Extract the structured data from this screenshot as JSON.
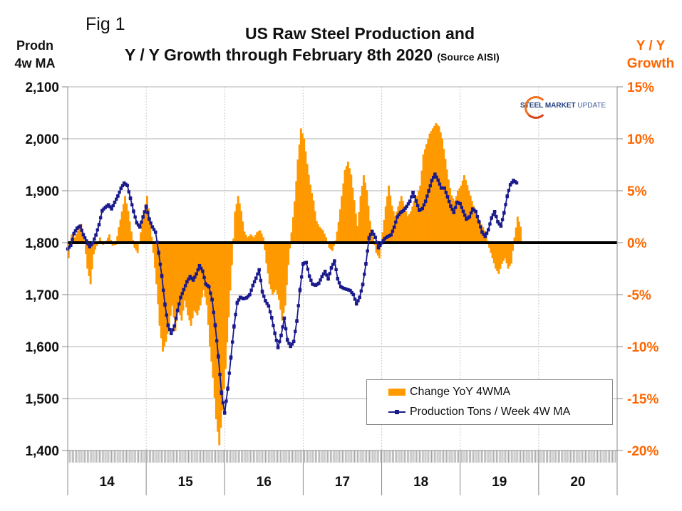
{
  "figure_label": "Fig 1",
  "title_line1": "US Raw Steel Production and",
  "title_line2": "Y / Y Growth through February 8th 2020",
  "source_note": "(Source AISI)",
  "left_axis_title_line1": "Prodn",
  "left_axis_title_line2": "4w MA",
  "right_axis_title_line1": "Y / Y",
  "right_axis_title_line2": "Growth",
  "logo": {
    "bold": "STEEL",
    "mid": "MARKET",
    "light": "UPDATE"
  },
  "colors": {
    "bars": "#ff9900",
    "line": "#1a1a8c",
    "right_axis": "#ff6600",
    "zero_line": "#000000",
    "grid": "#c0c0c0"
  },
  "chart_data": {
    "type": "bar+line",
    "title": "US Raw Steel Production and Y / Y Growth through February 8th 2020 (Source AISI)",
    "xlabel": "",
    "ylabel_left": "Prodn 4w MA",
    "ylabel_right": "Y / Y Growth",
    "ylim_left": [
      1400,
      2100
    ],
    "ylim_right": [
      -20,
      15
    ],
    "yticks_left": [
      "1,400",
      "1,500",
      "1,600",
      "1,700",
      "1,800",
      "1,900",
      "2,000",
      "2,100"
    ],
    "yticks_right": [
      "-20%",
      "-15%",
      "-10%",
      "-5%",
      "0%",
      "5%",
      "10%",
      "15%"
    ],
    "categories": [
      "14",
      "15",
      "16",
      "17",
      "18",
      "19",
      "20"
    ],
    "x_range_years": [
      2014.0,
      2021.0
    ],
    "grid": true,
    "legend_position": "bottom-right",
    "legend": [
      "Change YoY 4WMA",
      "Production Tons / Week 4W MA"
    ],
    "series": [
      {
        "name": "Change YoY 4WMA",
        "type": "bar",
        "axis": "right",
        "unit": "%",
        "points": [
          [
            2014.0,
            -1.5
          ],
          [
            2014.04,
            0.8
          ],
          [
            2014.08,
            0.5
          ],
          [
            2014.12,
            1.2
          ],
          [
            2014.16,
            1.8
          ],
          [
            2014.2,
            0.2
          ],
          [
            2014.24,
            -2.5
          ],
          [
            2014.28,
            -4.0
          ],
          [
            2014.32,
            -1.0
          ],
          [
            2014.36,
            -0.3
          ],
          [
            2014.4,
            0.5
          ],
          [
            2014.44,
            -0.2
          ],
          [
            2014.48,
            0.2
          ],
          [
            2014.52,
            0.8
          ],
          [
            2014.56,
            -0.3
          ],
          [
            2014.6,
            -0.2
          ],
          [
            2014.64,
            1.5
          ],
          [
            2014.68,
            3.0
          ],
          [
            2014.72,
            4.5
          ],
          [
            2014.76,
            3.0
          ],
          [
            2014.8,
            1.0
          ],
          [
            2014.84,
            -0.5
          ],
          [
            2014.88,
            -1.0
          ],
          [
            2014.92,
            1.0
          ],
          [
            2014.96,
            3.0
          ],
          [
            2015.0,
            4.5
          ],
          [
            2015.04,
            2.0
          ],
          [
            2015.08,
            -1.0
          ],
          [
            2015.12,
            -4.0
          ],
          [
            2015.16,
            -8.0
          ],
          [
            2015.2,
            -10.5
          ],
          [
            2015.24,
            -9.5
          ],
          [
            2015.28,
            -8.0
          ],
          [
            2015.32,
            -6.0
          ],
          [
            2015.36,
            -8.5
          ],
          [
            2015.4,
            -6.5
          ],
          [
            2015.44,
            -7.5
          ],
          [
            2015.48,
            -5.5
          ],
          [
            2015.52,
            -7.0
          ],
          [
            2015.56,
            -8.0
          ],
          [
            2015.6,
            -6.5
          ],
          [
            2015.64,
            -7.0
          ],
          [
            2015.68,
            -6.0
          ],
          [
            2015.72,
            -4.5
          ],
          [
            2015.76,
            -6.0
          ],
          [
            2015.8,
            -10.0
          ],
          [
            2015.84,
            -13.0
          ],
          [
            2015.88,
            -17.0
          ],
          [
            2015.92,
            -19.5
          ],
          [
            2015.96,
            -16.0
          ],
          [
            2016.0,
            -12.0
          ],
          [
            2016.04,
            -7.0
          ],
          [
            2016.08,
            -2.0
          ],
          [
            2016.12,
            3.0
          ],
          [
            2016.16,
            4.5
          ],
          [
            2016.2,
            3.0
          ],
          [
            2016.24,
            1.0
          ],
          [
            2016.28,
            0.5
          ],
          [
            2016.32,
            0.8
          ],
          [
            2016.36,
            0.5
          ],
          [
            2016.4,
            1.0
          ],
          [
            2016.44,
            1.2
          ],
          [
            2016.48,
            0.5
          ],
          [
            2016.52,
            -2.0
          ],
          [
            2016.56,
            -4.0
          ],
          [
            2016.6,
            -5.0
          ],
          [
            2016.64,
            -4.5
          ],
          [
            2016.68,
            -5.5
          ],
          [
            2016.72,
            -7.5
          ],
          [
            2016.76,
            -6.0
          ],
          [
            2016.8,
            -2.0
          ],
          [
            2016.84,
            1.0
          ],
          [
            2016.88,
            4.0
          ],
          [
            2016.92,
            8.0
          ],
          [
            2016.96,
            11.0
          ],
          [
            2017.0,
            10.0
          ],
          [
            2017.04,
            7.5
          ],
          [
            2017.08,
            5.5
          ],
          [
            2017.12,
            4.0
          ],
          [
            2017.16,
            2.0
          ],
          [
            2017.2,
            1.5
          ],
          [
            2017.24,
            1.2
          ],
          [
            2017.28,
            0.5
          ],
          [
            2017.32,
            -0.5
          ],
          [
            2017.36,
            -0.8
          ],
          [
            2017.4,
            0.2
          ],
          [
            2017.44,
            2.0
          ],
          [
            2017.48,
            4.5
          ],
          [
            2017.52,
            7.0
          ],
          [
            2017.56,
            7.8
          ],
          [
            2017.6,
            6.5
          ],
          [
            2017.64,
            4.0
          ],
          [
            2017.68,
            1.5
          ],
          [
            2017.72,
            4.5
          ],
          [
            2017.76,
            6.5
          ],
          [
            2017.8,
            5.0
          ],
          [
            2017.84,
            2.0
          ],
          [
            2017.88,
            0.5
          ],
          [
            2017.92,
            -1.0
          ],
          [
            2017.96,
            -1.5
          ],
          [
            2018.0,
            1.0
          ],
          [
            2018.04,
            3.5
          ],
          [
            2018.08,
            5.5
          ],
          [
            2018.12,
            3.5
          ],
          [
            2018.16,
            2.5
          ],
          [
            2018.2,
            3.5
          ],
          [
            2018.24,
            4.5
          ],
          [
            2018.28,
            3.5
          ],
          [
            2018.32,
            2.5
          ],
          [
            2018.36,
            3.0
          ],
          [
            2018.4,
            4.0
          ],
          [
            2018.44,
            4.5
          ],
          [
            2018.48,
            5.5
          ],
          [
            2018.52,
            8.5
          ],
          [
            2018.56,
            9.5
          ],
          [
            2018.6,
            10.5
          ],
          [
            2018.64,
            11.0
          ],
          [
            2018.68,
            11.5
          ],
          [
            2018.72,
            11.2
          ],
          [
            2018.76,
            10.0
          ],
          [
            2018.8,
            8.0
          ],
          [
            2018.84,
            6.0
          ],
          [
            2018.88,
            4.5
          ],
          [
            2018.92,
            4.0
          ],
          [
            2018.96,
            5.0
          ],
          [
            2019.0,
            5.5
          ],
          [
            2019.04,
            6.5
          ],
          [
            2019.08,
            5.5
          ],
          [
            2019.12,
            4.5
          ],
          [
            2019.16,
            3.5
          ],
          [
            2019.2,
            2.5
          ],
          [
            2019.24,
            2.0
          ],
          [
            2019.28,
            1.5
          ],
          [
            2019.32,
            0.8
          ],
          [
            2019.36,
            -0.5
          ],
          [
            2019.4,
            -1.5
          ],
          [
            2019.44,
            -2.5
          ],
          [
            2019.48,
            -3.0
          ],
          [
            2019.52,
            -2.0
          ],
          [
            2019.56,
            -1.5
          ],
          [
            2019.6,
            -2.5
          ],
          [
            2019.64,
            -2.0
          ],
          [
            2019.68,
            0.5
          ],
          [
            2019.72,
            2.5
          ],
          [
            2019.76,
            1.5
          ]
        ]
      },
      {
        "name": "Production Tons / Week 4W MA",
        "type": "line",
        "axis": "left",
        "unit": "tons",
        "points": [
          [
            2014.0,
            1788
          ],
          [
            2014.04,
            1795
          ],
          [
            2014.08,
            1818
          ],
          [
            2014.12,
            1828
          ],
          [
            2014.16,
            1832
          ],
          [
            2014.2,
            1815
          ],
          [
            2014.24,
            1803
          ],
          [
            2014.28,
            1792
          ],
          [
            2014.32,
            1800
          ],
          [
            2014.36,
            1815
          ],
          [
            2014.4,
            1835
          ],
          [
            2014.44,
            1862
          ],
          [
            2014.48,
            1868
          ],
          [
            2014.52,
            1873
          ],
          [
            2014.56,
            1865
          ],
          [
            2014.6,
            1878
          ],
          [
            2014.64,
            1890
          ],
          [
            2014.68,
            1905
          ],
          [
            2014.72,
            1915
          ],
          [
            2014.76,
            1910
          ],
          [
            2014.8,
            1885
          ],
          [
            2014.84,
            1860
          ],
          [
            2014.88,
            1838
          ],
          [
            2014.92,
            1830
          ],
          [
            2014.96,
            1850
          ],
          [
            2015.0,
            1870
          ],
          [
            2015.04,
            1845
          ],
          [
            2015.08,
            1830
          ],
          [
            2015.12,
            1820
          ],
          [
            2015.16,
            1780
          ],
          [
            2015.2,
            1735
          ],
          [
            2015.24,
            1680
          ],
          [
            2015.28,
            1640
          ],
          [
            2015.32,
            1625
          ],
          [
            2015.36,
            1640
          ],
          [
            2015.4,
            1670
          ],
          [
            2015.44,
            1695
          ],
          [
            2015.48,
            1710
          ],
          [
            2015.52,
            1725
          ],
          [
            2015.56,
            1735
          ],
          [
            2015.6,
            1728
          ],
          [
            2015.64,
            1740
          ],
          [
            2015.68,
            1756
          ],
          [
            2015.72,
            1745
          ],
          [
            2015.76,
            1720
          ],
          [
            2015.8,
            1715
          ],
          [
            2015.84,
            1690
          ],
          [
            2015.88,
            1640
          ],
          [
            2015.92,
            1580
          ],
          [
            2015.96,
            1510
          ],
          [
            2016.0,
            1472
          ],
          [
            2016.04,
            1520
          ],
          [
            2016.08,
            1580
          ],
          [
            2016.12,
            1640
          ],
          [
            2016.16,
            1685
          ],
          [
            2016.2,
            1695
          ],
          [
            2016.24,
            1692
          ],
          [
            2016.28,
            1694
          ],
          [
            2016.32,
            1700
          ],
          [
            2016.36,
            1718
          ],
          [
            2016.4,
            1732
          ],
          [
            2016.44,
            1748
          ],
          [
            2016.48,
            1705
          ],
          [
            2016.52,
            1688
          ],
          [
            2016.56,
            1678
          ],
          [
            2016.6,
            1655
          ],
          [
            2016.64,
            1625
          ],
          [
            2016.68,
            1598
          ],
          [
            2016.72,
            1622
          ],
          [
            2016.76,
            1655
          ],
          [
            2016.8,
            1612
          ],
          [
            2016.84,
            1600
          ],
          [
            2016.88,
            1610
          ],
          [
            2016.92,
            1650
          ],
          [
            2016.96,
            1710
          ],
          [
            2017.0,
            1760
          ],
          [
            2017.04,
            1762
          ],
          [
            2017.08,
            1735
          ],
          [
            2017.12,
            1720
          ],
          [
            2017.16,
            1718
          ],
          [
            2017.2,
            1722
          ],
          [
            2017.24,
            1735
          ],
          [
            2017.28,
            1745
          ],
          [
            2017.32,
            1730
          ],
          [
            2017.36,
            1752
          ],
          [
            2017.4,
            1765
          ],
          [
            2017.44,
            1730
          ],
          [
            2017.48,
            1715
          ],
          [
            2017.52,
            1712
          ],
          [
            2017.56,
            1710
          ],
          [
            2017.6,
            1708
          ],
          [
            2017.64,
            1700
          ],
          [
            2017.68,
            1682
          ],
          [
            2017.72,
            1695
          ],
          [
            2017.76,
            1720
          ],
          [
            2017.8,
            1760
          ],
          [
            2017.84,
            1810
          ],
          [
            2017.88,
            1822
          ],
          [
            2017.92,
            1810
          ],
          [
            2017.96,
            1790
          ],
          [
            2018.0,
            1800
          ],
          [
            2018.04,
            1808
          ],
          [
            2018.08,
            1812
          ],
          [
            2018.12,
            1815
          ],
          [
            2018.16,
            1830
          ],
          [
            2018.2,
            1850
          ],
          [
            2018.24,
            1858
          ],
          [
            2018.28,
            1862
          ],
          [
            2018.32,
            1870
          ],
          [
            2018.36,
            1880
          ],
          [
            2018.4,
            1897
          ],
          [
            2018.44,
            1880
          ],
          [
            2018.48,
            1862
          ],
          [
            2018.52,
            1866
          ],
          [
            2018.56,
            1880
          ],
          [
            2018.6,
            1900
          ],
          [
            2018.64,
            1920
          ],
          [
            2018.68,
            1932
          ],
          [
            2018.72,
            1920
          ],
          [
            2018.76,
            1905
          ],
          [
            2018.8,
            1905
          ],
          [
            2018.84,
            1888
          ],
          [
            2018.88,
            1870
          ],
          [
            2018.92,
            1858
          ],
          [
            2018.96,
            1878
          ],
          [
            2019.0,
            1875
          ],
          [
            2019.04,
            1860
          ],
          [
            2019.08,
            1845
          ],
          [
            2019.12,
            1850
          ],
          [
            2019.16,
            1865
          ],
          [
            2019.2,
            1860
          ],
          [
            2019.24,
            1840
          ],
          [
            2019.28,
            1820
          ],
          [
            2019.32,
            1812
          ],
          [
            2019.36,
            1825
          ],
          [
            2019.4,
            1848
          ],
          [
            2019.44,
            1860
          ],
          [
            2019.48,
            1840
          ],
          [
            2019.52,
            1832
          ],
          [
            2019.56,
            1858
          ],
          [
            2019.6,
            1890
          ],
          [
            2019.64,
            1912
          ],
          [
            2019.68,
            1920
          ],
          [
            2019.72,
            1915
          ]
        ]
      }
    ]
  }
}
